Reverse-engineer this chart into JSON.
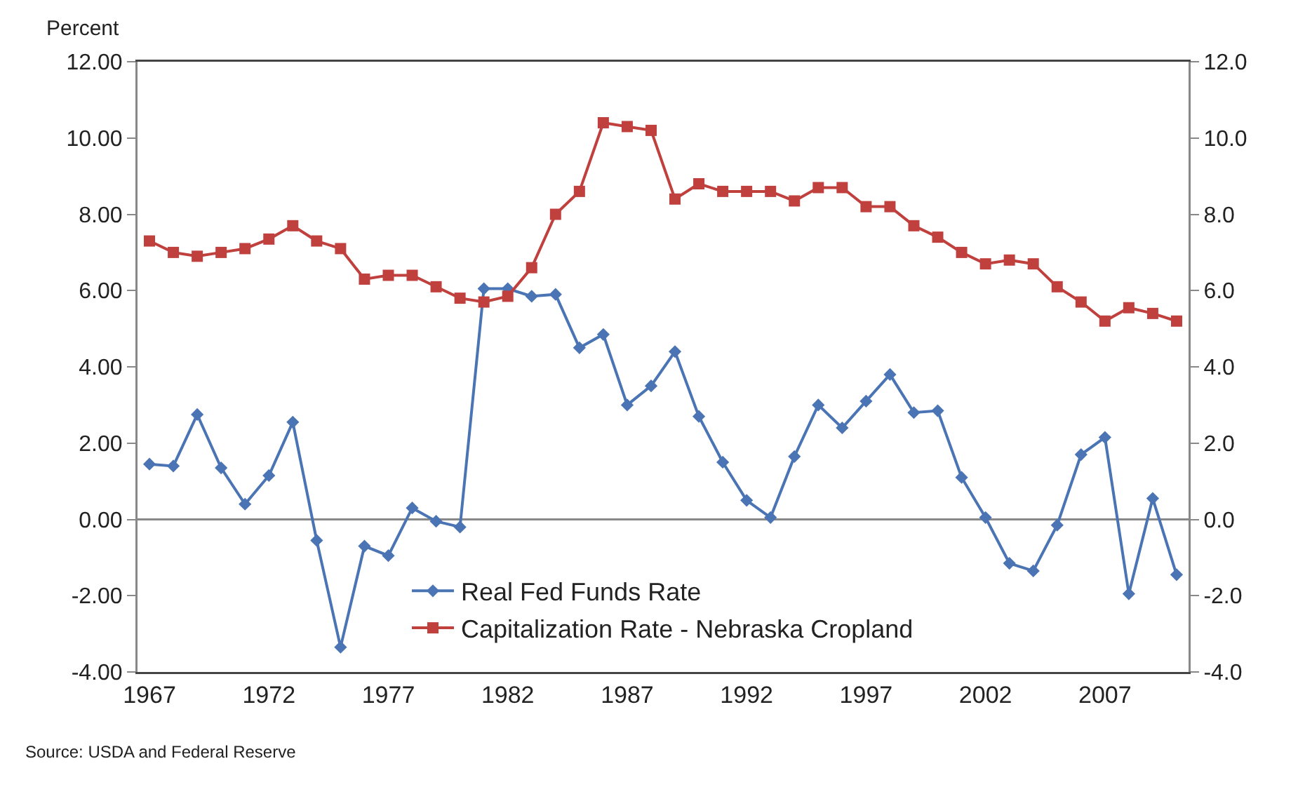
{
  "chart_data": {
    "type": "line",
    "ylabel": "Percent",
    "annotations": [
      "Source: USDA and Federal Reserve"
    ],
    "x": [
      1967,
      1968,
      1969,
      1970,
      1971,
      1972,
      1973,
      1974,
      1975,
      1976,
      1977,
      1978,
      1979,
      1980,
      1981,
      1982,
      1983,
      1984,
      1985,
      1986,
      1987,
      1988,
      1989,
      1990,
      1991,
      1992,
      1993,
      1994,
      1995,
      1996,
      1997,
      1998,
      1999,
      2000,
      2001,
      2002,
      2003,
      2004,
      2005,
      2006,
      2007,
      2008,
      2009,
      2010
    ],
    "series": [
      {
        "name": "Real Fed Funds Rate",
        "color": "#4a74b4",
        "marker": "diamond",
        "values": [
          1.45,
          1.4,
          2.75,
          1.35,
          0.4,
          1.15,
          2.55,
          -0.55,
          -3.35,
          -0.7,
          -0.95,
          0.3,
          -0.05,
          -0.2,
          6.05,
          6.05,
          5.85,
          5.9,
          4.5,
          4.85,
          3.0,
          3.5,
          4.4,
          2.7,
          1.5,
          0.5,
          0.05,
          1.65,
          3.0,
          2.4,
          3.1,
          3.8,
          2.8,
          2.85,
          1.1,
          0.05,
          -1.15,
          -1.35,
          -0.15,
          1.7,
          2.15,
          -1.95,
          0.55,
          -1.45
        ]
      },
      {
        "name": "Capitalization Rate - Nebraska Cropland",
        "color": "#c0403e",
        "marker": "square",
        "values": [
          7.3,
          7.0,
          6.9,
          7.0,
          7.1,
          7.35,
          7.7,
          7.3,
          7.1,
          6.3,
          6.4,
          6.4,
          6.1,
          5.8,
          5.7,
          5.85,
          6.6,
          8.0,
          8.6,
          10.4,
          10.3,
          10.2,
          8.4,
          8.8,
          8.6,
          8.6,
          8.6,
          8.35,
          8.7,
          8.7,
          8.2,
          8.2,
          7.7,
          7.4,
          7.0,
          6.7,
          6.8,
          6.7,
          6.1,
          5.7,
          5.2,
          5.55,
          5.4,
          5.2
        ]
      }
    ],
    "xlim": [
      1966.5,
      2010.5
    ],
    "xticks": [
      1967,
      1972,
      1977,
      1982,
      1987,
      1992,
      1997,
      2002,
      2007
    ],
    "ylim": [
      -4,
      12
    ],
    "yticks": [
      {
        "value": -4,
        "label": "-4.00"
      },
      {
        "value": -2,
        "label": "-2.00"
      },
      {
        "value": 0,
        "label": "0.00"
      },
      {
        "value": 2,
        "label": "2.00"
      },
      {
        "value": 4,
        "label": "4.00"
      },
      {
        "value": 6,
        "label": "6.00"
      },
      {
        "value": 8,
        "label": "8.00"
      },
      {
        "value": 10,
        "label": "10.00"
      },
      {
        "value": 12,
        "label": "12.00"
      }
    ],
    "y2lim": [
      -4,
      12
    ],
    "y2ticks": [
      {
        "value": -4,
        "label": "-4.0"
      },
      {
        "value": -2,
        "label": "-2.0"
      },
      {
        "value": 0,
        "label": "0.0"
      },
      {
        "value": 2,
        "label": "2.0"
      },
      {
        "value": 4,
        "label": "4.0"
      },
      {
        "value": 6,
        "label": "6.0"
      },
      {
        "value": 8,
        "label": "8.0"
      },
      {
        "value": 10,
        "label": "10.0"
      },
      {
        "value": 12,
        "label": "12.0"
      }
    ],
    "ref_lines": [
      {
        "axis": "y",
        "value": 0,
        "color": "#888888"
      }
    ],
    "grid": false,
    "legend": "bottom"
  }
}
